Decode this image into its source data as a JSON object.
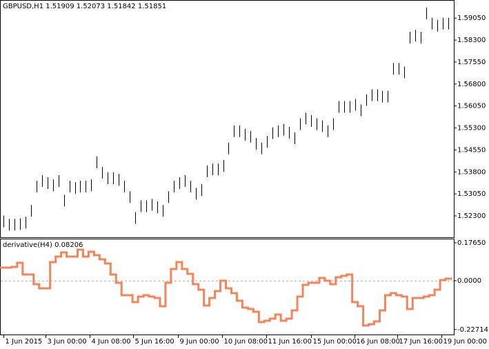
{
  "chart_data": [
    {
      "type": "hilo",
      "title": "GBPUSD,H1  1.51909 1.52073 1.51842 1.51851",
      "color": "#000000",
      "xlim": [
        -0.5,
        82
      ],
      "ylim": [
        1.5157,
        1.5962
      ],
      "yticks": [
        {
          "value": 1.5905,
          "label": "1.59050"
        },
        {
          "value": 1.583,
          "label": "1.58300"
        },
        {
          "value": 1.5755,
          "label": "1.57550"
        },
        {
          "value": 1.568,
          "label": "1.56800"
        },
        {
          "value": 1.5605,
          "label": "1.56050"
        },
        {
          "value": 1.553,
          "label": "1.55300"
        },
        {
          "value": 1.5455,
          "label": "1.54550"
        },
        {
          "value": 1.538,
          "label": "1.53800"
        },
        {
          "value": 1.5305,
          "label": "1.53050"
        },
        {
          "value": 1.523,
          "label": "1.52300"
        }
      ],
      "high": [
        1.5231,
        1.522,
        1.522,
        1.5222,
        1.5227,
        1.5267,
        1.535,
        1.5369,
        1.5362,
        1.5354,
        1.5369,
        1.5302,
        1.535,
        1.5345,
        1.535,
        1.535,
        1.5354,
        1.5433,
        1.5397,
        1.5378,
        1.5378,
        1.5373,
        1.535,
        1.5314,
        1.5243,
        1.5283,
        1.5283,
        1.5288,
        1.5279,
        1.5267,
        1.5314,
        1.535,
        1.5362,
        1.5369,
        1.535,
        1.5326,
        1.5338,
        1.5402,
        1.5409,
        1.5409,
        1.5421,
        1.548,
        1.5539,
        1.5539,
        1.5527,
        1.552,
        1.5496,
        1.548,
        1.5503,
        1.5532,
        1.5539,
        1.5544,
        1.5534,
        1.5515,
        1.5563,
        1.5582,
        1.5574,
        1.5563,
        1.5556,
        1.5539,
        1.5563,
        1.5622,
        1.5622,
        1.5622,
        1.5629,
        1.561,
        1.5645,
        1.5662,
        1.5662,
        1.5657,
        1.5657,
        1.5752,
        1.5752,
        1.574,
        1.5858,
        1.5865,
        1.5858,
        1.5941,
        1.5906,
        1.5899,
        1.5906,
        1.5906
      ],
      "low": [
        1.5191,
        1.518,
        1.518,
        1.5182,
        1.5187,
        1.5227,
        1.531,
        1.5329,
        1.5322,
        1.5314,
        1.5329,
        1.5262,
        1.531,
        1.5305,
        1.531,
        1.531,
        1.5314,
        1.5393,
        1.5357,
        1.5338,
        1.5338,
        1.5333,
        1.531,
        1.5274,
        1.5203,
        1.5243,
        1.5243,
        1.5248,
        1.5239,
        1.5227,
        1.5274,
        1.531,
        1.5322,
        1.5329,
        1.531,
        1.5286,
        1.5298,
        1.5362,
        1.5369,
        1.5369,
        1.5381,
        1.544,
        1.5499,
        1.5499,
        1.5487,
        1.548,
        1.5456,
        1.544,
        1.5463,
        1.5492,
        1.5499,
        1.5504,
        1.5494,
        1.5475,
        1.5523,
        1.5542,
        1.5534,
        1.5523,
        1.5516,
        1.5499,
        1.5523,
        1.5582,
        1.5582,
        1.5582,
        1.5589,
        1.557,
        1.5605,
        1.5622,
        1.5622,
        1.5617,
        1.5617,
        1.5712,
        1.5712,
        1.57,
        1.5818,
        1.5825,
        1.5818,
        1.5901,
        1.5866,
        1.5859,
        1.5866,
        1.5866
      ]
    },
    {
      "type": "step",
      "title": "derivative(H4) 0.08206",
      "color": "#f4845a",
      "xlim": [
        -0.5,
        82
      ],
      "ylim": [
        -0.2503,
        0.1925
      ],
      "levels": [
        0
      ],
      "yticks": [
        {
          "value": 0.1765,
          "label": "0.17650"
        },
        {
          "value": 0,
          "label": "0.0000"
        },
        -0.22714
      ],
      "xticks": [
        {
          "value": 0,
          "label": "1 Jun 2015"
        },
        {
          "value": 7.6,
          "label": "3 Jun 00:00"
        },
        {
          "value": 15.75,
          "label": "4 Jun 08:00"
        },
        {
          "value": 23.6,
          "label": "5 Jun 16:00"
        },
        {
          "value": 31.75,
          "label": "9 Jun 00:00"
        },
        {
          "value": 39.75,
          "label": "10 Jun 08:00"
        },
        {
          "value": 47.9,
          "label": "11 Jun 16:00"
        },
        {
          "value": 56,
          "label": "15 Jun 00:00"
        },
        {
          "value": 63.9,
          "label": "16 Jun 08:00"
        },
        {
          "value": 71.75,
          "label": "17 Jun 16:00"
        },
        {
          "value": 79.75,
          "label": "19 Jun 00:00"
        }
      ],
      "values": [
        0.061,
        0.061,
        0.0642,
        0.0834,
        0.0289,
        0.0289,
        -0.016,
        -0.0353,
        -0.0353,
        0.0866,
        0.1123,
        0.1316,
        0.1123,
        0.1123,
        0.1444,
        0.1123,
        0.1348,
        0.1187,
        0.0995,
        0.0802,
        0.0289,
        -0.0096,
        -0.0674,
        -0.0674,
        -0.0995,
        -0.0738,
        -0.0674,
        -0.0738,
        -0.0802,
        -0.1187,
        -0.0096,
        0.0546,
        0.0866,
        0.0546,
        0.0321,
        -0.016,
        -0.0417,
        -0.1155,
        -0.0802,
        -0.0481,
        0.0,
        -0.0353,
        -0.0578,
        -0.0931,
        -0.1252,
        -0.1316,
        -0.1444,
        -0.1925,
        -0.1861,
        -0.1765,
        -0.1572,
        -0.1861,
        -0.1765,
        -0.138,
        -0.0738,
        -0.0193,
        -0.0096,
        -0.0096,
        0.0128,
        0.0,
        -0.016,
        0.016,
        0.0225,
        0.0289,
        -0.0995,
        -0.1187,
        -0.2086,
        -0.2022,
        -0.1893,
        -0.138,
        -0.0674,
        -0.0578,
        -0.0674,
        -0.0738,
        -0.1316,
        -0.0802,
        -0.0802,
        -0.0738,
        -0.0674,
        -0.0417,
        0.0032,
        0.0096
      ]
    }
  ]
}
